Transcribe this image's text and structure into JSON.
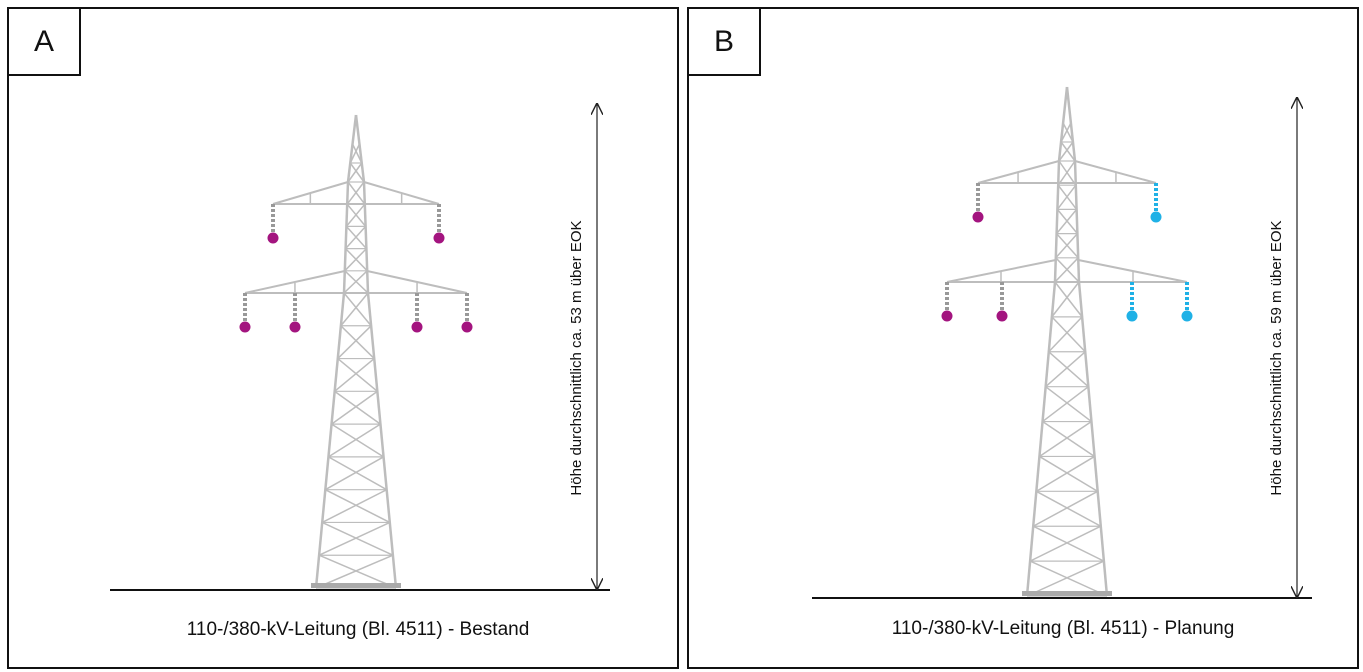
{
  "panels": [
    {
      "label": "A",
      "height_label": "Höhe durchschnittlich ca. 53 m über EOK",
      "caption": "110-/380-kV-Leitung (Bl. 4511) - Bestand"
    },
    {
      "label": "B",
      "height_label": "Höhe durchschnittlich ca. 59 m über EOK",
      "caption": "110-/380-kV-Leitung (Bl. 4511) - Planung"
    }
  ]
}
